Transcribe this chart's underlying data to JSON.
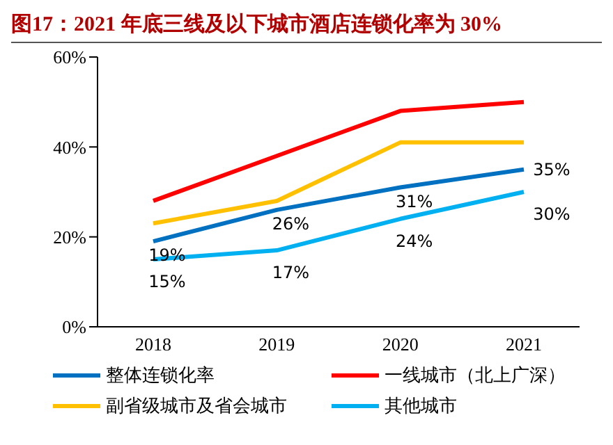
{
  "chart_data": {
    "type": "line",
    "title": "图17：2021 年底三线及以下城市酒店连锁化率为 30%",
    "categories": [
      "2018",
      "2019",
      "2020",
      "2021"
    ],
    "series": [
      {
        "name": "整体连锁化率",
        "color": "#0070c0",
        "values": [
          19,
          26,
          31,
          35
        ],
        "value_labels": [
          "19%",
          "26%",
          "31%",
          "35%"
        ]
      },
      {
        "name": "一线城市（北上广深）",
        "color": "#ff0000",
        "values": [
          28,
          38,
          48,
          50
        ]
      },
      {
        "name": "副省级城市及省会城市",
        "color": "#ffc000",
        "values": [
          23,
          28,
          41,
          41
        ]
      },
      {
        "name": "其他城市",
        "color": "#00b0f0",
        "values": [
          15,
          17,
          24,
          30
        ],
        "value_labels": [
          "15%",
          "17%",
          "24%",
          "30%"
        ]
      }
    ],
    "ylim": [
      0,
      60
    ],
    "yticks": [
      {
        "value": 0,
        "label": "0%"
      },
      {
        "value": 20,
        "label": "20%"
      },
      {
        "value": 40,
        "label": "40%"
      },
      {
        "value": 60,
        "label": "60%"
      }
    ],
    "grid": false,
    "legend": "bottom",
    "marker": "none",
    "line_style": "solid"
  }
}
